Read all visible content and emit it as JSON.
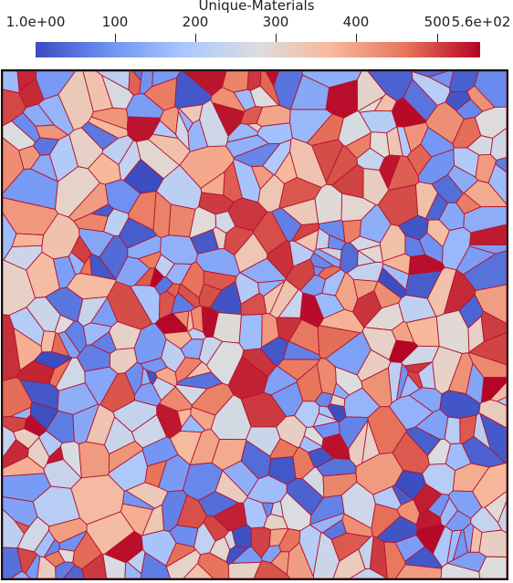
{
  "colorbar": {
    "title": "Unique-Materials",
    "range": [
      1,
      560
    ],
    "ticks": [
      {
        "label": "1.0e+00",
        "value": 1
      },
      {
        "label": "100",
        "value": 100
      },
      {
        "label": "200",
        "value": 200
      },
      {
        "label": "300",
        "value": 300
      },
      {
        "label": "400",
        "value": 400
      },
      {
        "label": "500",
        "value": 500
      },
      {
        "label": "5.6e+02",
        "value": 560
      }
    ],
    "colormap": [
      "#3b4cc0",
      "#6f92f3",
      "#aac7fd",
      "#dddddd",
      "#f7b89c",
      "#e7745b",
      "#b40426"
    ]
  },
  "colors": {
    "grain_boundary": "#b3122e",
    "frame": "#111111"
  }
}
